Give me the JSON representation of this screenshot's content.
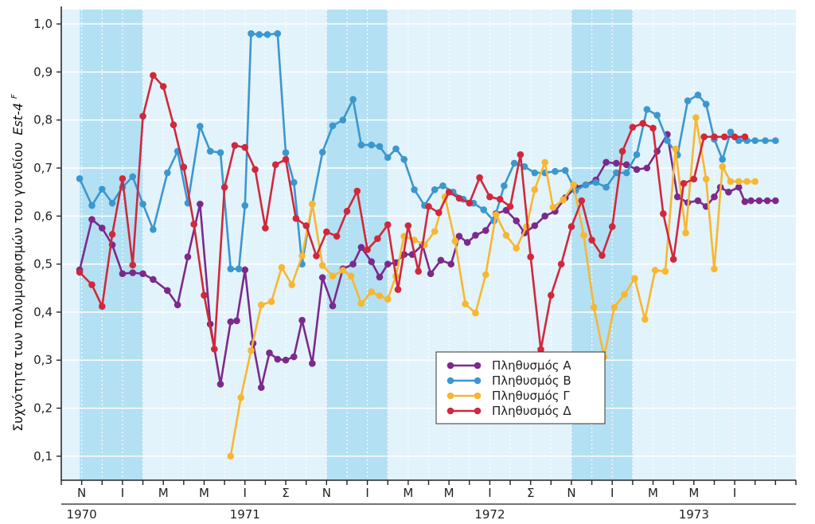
{
  "chart_data": {
    "type": "line",
    "ylabel": "Συχνότητα των πολυμορφισμών του γονιδίου",
    "ylabel_gene": "Est-4",
    "ylabel_gene_sup": "F",
    "ylim": [
      0.05,
      1.03
    ],
    "yticks": [
      0.1,
      0.2,
      0.3,
      0.4,
      0.5,
      0.6,
      0.7,
      0.8,
      0.9,
      1.0
    ],
    "ytick_labels": [
      "0,1",
      "0,2",
      "0,3",
      "0,4",
      "0,5",
      "0,6",
      "0,7",
      "0,8",
      "0,9",
      "1,0"
    ],
    "xlim": [
      0,
      36
    ],
    "month_labels": [
      "Ν",
      "Ι",
      "Μ",
      "Μ",
      "Ι",
      "Σ",
      "Ν",
      "Ι",
      "Μ",
      "Μ",
      "Ι",
      "Σ",
      "Ν",
      "Ι",
      "Μ",
      "Μ",
      "Ι"
    ],
    "month_positions": [
      1,
      3,
      5,
      7,
      9,
      11,
      13,
      15,
      17,
      19,
      21,
      23,
      25,
      27,
      29,
      31,
      33
    ],
    "year_labels": [
      {
        "label": "1970",
        "x": 1
      },
      {
        "label": "1971",
        "x": 9
      },
      {
        "label": "1972",
        "x": 21
      },
      {
        "label": "1973",
        "x": 31
      }
    ],
    "winter_bands": [
      [
        0.9,
        4
      ],
      [
        13,
        16
      ],
      [
        25,
        28
      ]
    ],
    "gridlines": true,
    "legend_position": "bottom-right",
    "series": [
      {
        "name": "Πληθυσμός Α",
        "color": "#7b2a8c",
        "x": [
          0.9,
          1.5,
          2.0,
          2.5,
          3.0,
          3.5,
          4.0,
          4.5,
          5.2,
          5.7,
          6.2,
          6.8,
          7.3,
          7.8,
          8.3,
          8.6,
          9.0,
          9.4,
          9.8,
          10.2,
          10.6,
          11.0,
          11.4,
          11.8,
          12.3,
          12.8,
          13.3,
          13.8,
          14.3,
          14.7,
          15.2,
          15.6,
          16.0,
          16.4,
          16.8,
          17.2,
          17.7,
          18.1,
          18.6,
          19.1,
          19.5,
          19.9,
          20.3,
          20.8,
          21.3,
          21.8,
          22.3,
          22.7,
          23.2,
          23.7,
          24.2,
          24.7,
          25.2,
          25.7,
          26.2,
          26.7,
          27.2,
          27.7,
          28.2,
          28.7,
          29.2,
          29.7,
          30.2,
          30.7,
          31.2,
          31.6,
          32.0,
          32.3,
          32.7,
          33.2,
          33.5,
          33.8,
          34.2,
          34.6,
          35.0
        ],
        "y": [
          0.488,
          0.593,
          0.575,
          0.54,
          0.48,
          0.482,
          0.48,
          0.468,
          0.445,
          0.415,
          0.515,
          0.625,
          0.375,
          0.25,
          0.38,
          0.382,
          0.488,
          0.335,
          0.243,
          0.315,
          0.302,
          0.3,
          0.307,
          0.383,
          0.293,
          0.472,
          0.413,
          0.49,
          0.5,
          0.535,
          0.505,
          0.473,
          0.5,
          0.503,
          0.52,
          0.52,
          0.54,
          0.48,
          0.508,
          0.5,
          0.558,
          0.545,
          0.56,
          0.57,
          0.605,
          0.612,
          0.59,
          0.565,
          0.58,
          0.6,
          0.61,
          0.638,
          0.66,
          0.665,
          0.675,
          0.712,
          0.71,
          0.707,
          0.697,
          0.7,
          0.735,
          0.77,
          0.64,
          0.628,
          0.632,
          0.62,
          0.64,
          0.66,
          0.65,
          0.66,
          0.63,
          0.632,
          0.632,
          0.632,
          0.632
        ]
      },
      {
        "name": "Πληθυσμός Β",
        "color": "#3b97cf",
        "x": [
          0.9,
          1.5,
          2.0,
          2.5,
          3.0,
          3.5,
          4.0,
          4.5,
          5.2,
          5.7,
          6.2,
          6.8,
          7.3,
          7.8,
          8.3,
          8.7,
          9.0,
          9.3,
          9.7,
          10.1,
          10.6,
          11.0,
          11.4,
          11.8,
          12.3,
          12.8,
          13.3,
          13.8,
          14.3,
          14.7,
          15.2,
          15.6,
          16.0,
          16.4,
          16.8,
          17.3,
          17.8,
          18.3,
          18.7,
          19.2,
          19.7,
          20.2,
          20.7,
          21.2,
          21.7,
          22.2,
          22.7,
          23.2,
          23.7,
          24.2,
          24.7,
          25.2,
          25.7,
          26.2,
          26.7,
          27.2,
          27.7,
          28.2,
          28.7,
          29.2,
          29.7,
          30.2,
          30.7,
          31.2,
          31.6,
          32.0,
          32.4,
          32.8,
          33.2,
          33.6,
          34.0,
          34.5,
          35.0
        ],
        "y": [
          0.678,
          0.622,
          0.656,
          0.627,
          0.66,
          0.682,
          0.625,
          0.572,
          0.69,
          0.735,
          0.627,
          0.787,
          0.735,
          0.732,
          0.49,
          0.49,
          0.622,
          0.98,
          0.978,
          0.978,
          0.98,
          0.732,
          0.67,
          0.5,
          0.625,
          0.733,
          0.788,
          0.8,
          0.843,
          0.748,
          0.748,
          0.745,
          0.722,
          0.74,
          0.718,
          0.655,
          0.622,
          0.655,
          0.663,
          0.65,
          0.635,
          0.627,
          0.613,
          0.59,
          0.663,
          0.71,
          0.703,
          0.69,
          0.69,
          0.693,
          0.695,
          0.653,
          0.665,
          0.67,
          0.66,
          0.69,
          0.69,
          0.728,
          0.822,
          0.81,
          0.757,
          0.727,
          0.84,
          0.852,
          0.833,
          0.76,
          0.718,
          0.775,
          0.757,
          0.757,
          0.757,
          0.757,
          0.757
        ]
      },
      {
        "name": "Πληθυσμός Γ",
        "color": "#f7b731",
        "x": [
          8.3,
          8.8,
          9.3,
          9.8,
          10.3,
          10.8,
          11.3,
          11.8,
          12.3,
          12.8,
          13.3,
          13.8,
          14.2,
          14.7,
          15.2,
          15.6,
          16.0,
          16.4,
          16.8,
          17.3,
          17.8,
          18.3,
          18.8,
          19.3,
          19.8,
          20.3,
          20.8,
          21.3,
          21.8,
          22.3,
          22.8,
          23.2,
          23.7,
          24.1,
          24.6,
          25.1,
          25.6,
          26.1,
          26.6,
          27.1,
          27.6,
          28.1,
          28.6,
          29.1,
          29.6,
          30.1,
          30.6,
          31.1,
          31.6,
          32.0,
          32.4,
          32.8,
          33.2,
          33.6,
          34.0
        ],
        "y": [
          0.1,
          0.222,
          0.32,
          0.415,
          0.422,
          0.493,
          0.457,
          0.517,
          0.625,
          0.497,
          0.475,
          0.487,
          0.475,
          0.418,
          0.442,
          0.434,
          0.427,
          0.475,
          0.558,
          0.55,
          0.54,
          0.568,
          0.64,
          0.548,
          0.417,
          0.398,
          0.478,
          0.603,
          0.56,
          0.533,
          0.578,
          0.655,
          0.712,
          0.618,
          0.634,
          0.665,
          0.56,
          0.41,
          0.307,
          0.41,
          0.437,
          0.47,
          0.385,
          0.487,
          0.485,
          0.74,
          0.565,
          0.805,
          0.677,
          0.49,
          0.703,
          0.672,
          0.672,
          0.672,
          0.672
        ]
      },
      {
        "name": "Πληθυσμός Δ",
        "color": "#d0283c",
        "x": [
          0.9,
          1.5,
          2.0,
          2.5,
          3.0,
          3.5,
          4.0,
          4.5,
          5.0,
          5.5,
          6.0,
          6.5,
          7.0,
          7.5,
          8.0,
          8.5,
          9.0,
          9.5,
          10.0,
          10.5,
          11.0,
          11.5,
          12.0,
          12.5,
          13.0,
          13.5,
          14.0,
          14.5,
          15.0,
          15.5,
          16.0,
          16.5,
          17.0,
          17.5,
          18.0,
          18.5,
          19.0,
          19.5,
          20.0,
          20.5,
          21.0,
          21.5,
          22.0,
          22.5,
          23.0,
          23.5,
          24.0,
          24.5,
          25.0,
          25.5,
          26.0,
          26.5,
          27.0,
          27.5,
          28.0,
          28.5,
          29.0,
          29.5,
          30.0,
          30.5,
          31.0,
          31.5,
          32.0,
          32.5,
          33.0,
          33.5
        ],
        "y": [
          0.483,
          0.457,
          0.412,
          0.562,
          0.678,
          0.498,
          0.808,
          0.893,
          0.87,
          0.79,
          0.702,
          0.583,
          0.435,
          0.323,
          0.66,
          0.747,
          0.743,
          0.697,
          0.575,
          0.707,
          0.718,
          0.595,
          0.58,
          0.517,
          0.567,
          0.558,
          0.61,
          0.652,
          0.53,
          0.553,
          0.582,
          0.447,
          0.58,
          0.485,
          0.62,
          0.607,
          0.65,
          0.637,
          0.627,
          0.68,
          0.64,
          0.635,
          0.62,
          0.728,
          0.515,
          0.322,
          0.435,
          0.5,
          0.578,
          0.632,
          0.55,
          0.518,
          0.578,
          0.735,
          0.785,
          0.793,
          0.783,
          0.605,
          0.51,
          0.668,
          0.677,
          0.765,
          0.765,
          0.765,
          0.765,
          0.765
        ]
      }
    ]
  }
}
